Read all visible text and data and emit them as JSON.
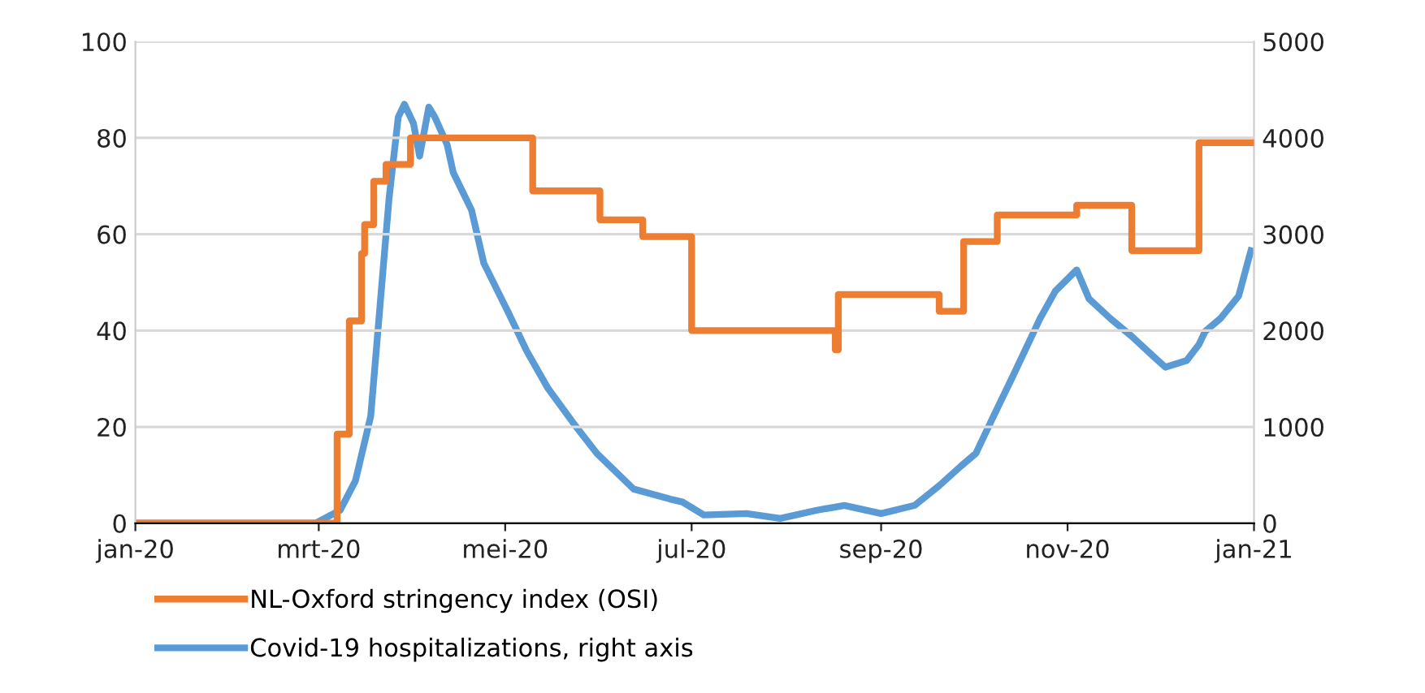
{
  "chart_data": {
    "type": "line",
    "xlim": [
      "2020-01-01",
      "2021-01-01"
    ],
    "xticks": [
      {
        "value": "2020-01-01",
        "label": "jan-20"
      },
      {
        "value": "2020-03-01",
        "label": "mrt-20"
      },
      {
        "value": "2020-05-01",
        "label": "mei-20"
      },
      {
        "value": "2020-07-01",
        "label": "jul-20"
      },
      {
        "value": "2020-09-01",
        "label": "sep-20"
      },
      {
        "value": "2020-11-01",
        "label": "nov-20"
      },
      {
        "value": "2021-01-01",
        "label": "jan-21"
      }
    ],
    "ylim": [
      0,
      100
    ],
    "yticks": [
      0,
      20,
      40,
      60,
      80,
      100
    ],
    "y2lim": [
      0,
      5000
    ],
    "y2ticks": [
      0,
      1000,
      2000,
      3000,
      4000,
      5000
    ],
    "grid": "y",
    "legend": "bottom left",
    "series": [
      {
        "name": "NL-Oxford stringency index (OSI)",
        "type": "step",
        "color": "#ed7d31",
        "x": [
          "2020-01-01",
          "2020-03-07",
          "2020-03-11",
          "2020-03-15",
          "2020-03-16",
          "2020-03-19",
          "2020-03-23",
          "2020-03-31",
          "2020-05-10",
          "2020-06-01",
          "2020-06-15",
          "2020-07-01",
          "2020-08-17",
          "2020-08-18",
          "2020-09-20",
          "2020-09-28",
          "2020-10-09",
          "2020-11-04",
          "2020-11-22",
          "2020-12-14",
          "2020-12-31"
        ],
        "values": [
          0,
          18.5,
          42,
          56,
          62,
          71,
          74.5,
          80,
          69,
          63,
          59.5,
          40,
          36,
          47.5,
          44,
          58.5,
          64,
          66,
          56.6,
          79,
          79
        ]
      },
      {
        "name": "Covid-19 hospitalizations, right axis",
        "axis": "y2",
        "color": "#5b9bd5",
        "x": [
          "2020-01-01",
          "2020-02-29",
          "2020-03-01",
          "2020-03-08",
          "2020-03-13",
          "2020-03-18",
          "2020-03-21",
          "2020-03-24",
          "2020-03-27",
          "2020-03-29",
          "2020-04-01",
          "2020-04-03",
          "2020-04-06",
          "2020-04-08",
          "2020-04-12",
          "2020-04-14",
          "2020-04-20",
          "2020-04-24",
          "2020-05-02",
          "2020-05-08",
          "2020-05-15",
          "2020-05-24",
          "2020-05-31",
          "2020-06-12",
          "2020-06-24",
          "2020-06-28",
          "2020-07-05",
          "2020-07-19",
          "2020-07-30",
          "2020-08-11",
          "2020-08-20",
          "2020-09-01",
          "2020-09-12",
          "2020-09-20",
          "2020-09-27",
          "2020-10-02",
          "2020-10-07",
          "2020-10-14",
          "2020-10-19",
          "2020-10-23",
          "2020-10-28",
          "2020-11-04",
          "2020-11-08",
          "2020-11-15",
          "2020-11-22",
          "2020-11-29",
          "2020-12-03",
          "2020-12-10",
          "2020-12-14",
          "2020-12-16",
          "2020-12-21",
          "2020-12-27",
          "2020-12-30",
          "2020-12-31"
        ],
        "values": [
          0,
          0,
          17,
          135,
          440,
          1110,
          2240,
          3370,
          4215,
          4350,
          4150,
          3810,
          4320,
          4215,
          3930,
          3640,
          3250,
          2700,
          2190,
          1790,
          1400,
          1010,
          725,
          355,
          250,
          220,
          85,
          100,
          50,
          135,
          185,
          100,
          185,
          390,
          590,
          725,
          1060,
          1520,
          1855,
          2125,
          2410,
          2630,
          2330,
          2125,
          1940,
          1735,
          1620,
          1690,
          1855,
          1990,
          2125,
          2360,
          2715,
          2830
        ]
      }
    ]
  }
}
